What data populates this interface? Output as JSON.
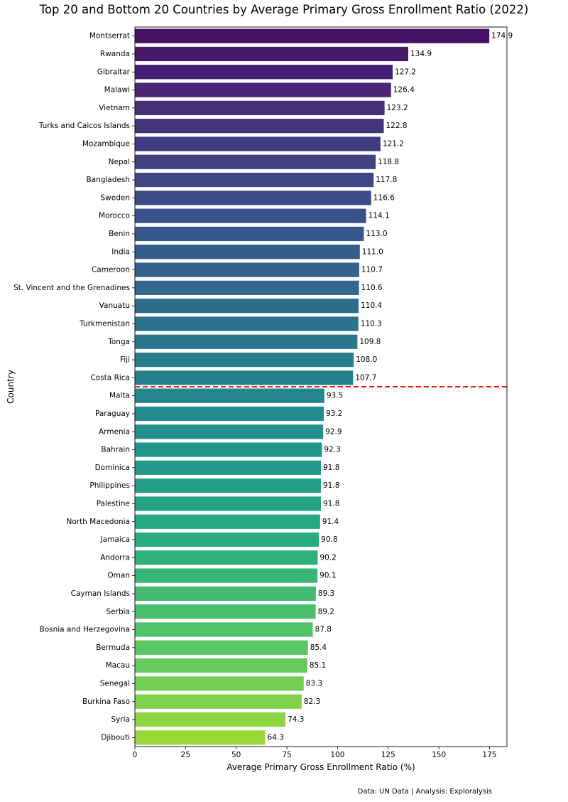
{
  "chart_data": {
    "type": "bar",
    "orientation": "horizontal",
    "title": "Top 20 and Bottom 20 Countries by Average Primary Gross Enrollment Ratio (2022)",
    "xlabel": "Average Primary Gross Enrollment Ratio (%)",
    "ylabel": "Country",
    "xlim": [
      0,
      183.6
    ],
    "xticks": [
      0,
      25,
      50,
      75,
      100,
      125,
      150,
      175
    ],
    "grid": false,
    "colormap": "viridis",
    "divider": {
      "style": "dashed",
      "color": "#e8211e",
      "between": [
        "Costa Rica",
        "Malta"
      ]
    },
    "categories": [
      "Montserrat",
      "Rwanda",
      "Gibraltar",
      "Malawi",
      "Vietnam",
      "Turks and Caicos Islands",
      "Mozambique",
      "Nepal",
      "Bangladesh",
      "Sweden",
      "Morocco",
      "Benin",
      "India",
      "Cameroon",
      "St. Vincent and the Grenadines",
      "Vanuatu",
      "Turkmenistan",
      "Tonga",
      "Fiji",
      "Costa Rica",
      "Malta",
      "Paraguay",
      "Armenia",
      "Bahrain",
      "Dominica",
      "Philippines",
      "Palestine",
      "North Macedonia",
      "Jamaica",
      "Andorra",
      "Oman",
      "Cayman Islands",
      "Serbia",
      "Bosnia and Herzegovina",
      "Bermuda",
      "Macau",
      "Senegal",
      "Burkina Faso",
      "Syria",
      "Djibouti"
    ],
    "values": [
      174.9,
      134.9,
      127.2,
      126.4,
      123.2,
      122.8,
      121.2,
      118.8,
      117.8,
      116.6,
      114.1,
      113.0,
      111.0,
      110.7,
      110.6,
      110.4,
      110.3,
      109.8,
      108.0,
      107.7,
      93.5,
      93.2,
      92.9,
      92.3,
      91.8,
      91.8,
      91.8,
      91.4,
      90.8,
      90.2,
      90.1,
      89.3,
      89.2,
      87.8,
      85.4,
      85.1,
      83.3,
      82.3,
      74.3,
      64.3
    ],
    "value_labels": [
      "174.9",
      "134.9",
      "127.2",
      "126.4",
      "123.2",
      "122.8",
      "121.2",
      "118.8",
      "117.8",
      "116.6",
      "114.1",
      "113.0",
      "111.0",
      "110.7",
      "110.6",
      "110.4",
      "110.3",
      "109.8",
      "108.0",
      "107.7",
      "93.5",
      "93.2",
      "92.9",
      "92.3",
      "91.8",
      "91.8",
      "91.8",
      "91.4",
      "90.8",
      "90.2",
      "90.1",
      "89.3",
      "89.2",
      "87.8",
      "85.4",
      "85.1",
      "83.3",
      "82.3",
      "74.3",
      "64.3"
    ]
  },
  "footer": "Data: UN Data | Analysis: Exploralysis"
}
